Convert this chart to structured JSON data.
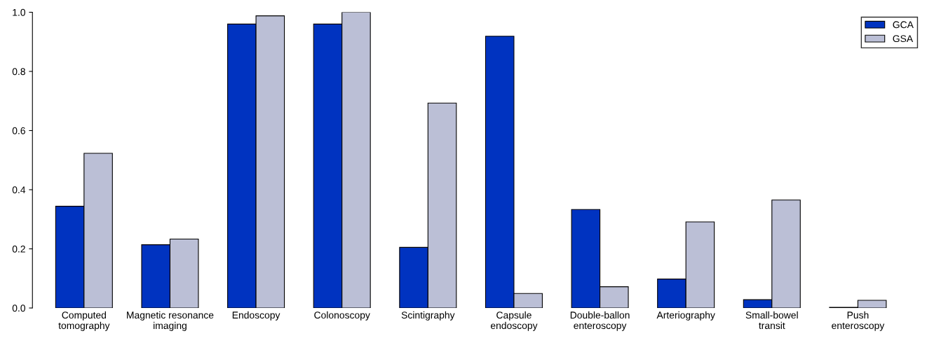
{
  "chart_data": {
    "type": "bar",
    "categories": [
      "Computed\ntomography",
      "Magnetic resonance\nimaging",
      "Endoscopy",
      "Colonoscopy",
      "Scintigraphy",
      "Capsule\nendoscopy",
      "Double-ballon\nenteroscopy",
      "Arteriography",
      "Small-bowel\ntransit",
      "Push\nenteroscopy"
    ],
    "series": [
      {
        "name": "GCA",
        "color": "#0033c0",
        "values": [
          0.344,
          0.214,
          0.96,
          0.96,
          0.205,
          0.919,
          0.333,
          0.098,
          0.028,
          0.002
        ]
      },
      {
        "name": "GSA",
        "color": "#bbbfd6",
        "values": [
          0.523,
          0.233,
          0.988,
          1.0,
          0.693,
          0.049,
          0.072,
          0.291,
          0.365,
          0.026
        ]
      }
    ],
    "ylim": [
      0,
      1.0
    ],
    "yticks": [
      {
        "value": 0,
        "label": "0.0"
      },
      0.2,
      0.4,
      0.6,
      0.8,
      {
        "value": 1.0,
        "label": "1.0"
      }
    ],
    "grid": false,
    "legend": "top right"
  }
}
